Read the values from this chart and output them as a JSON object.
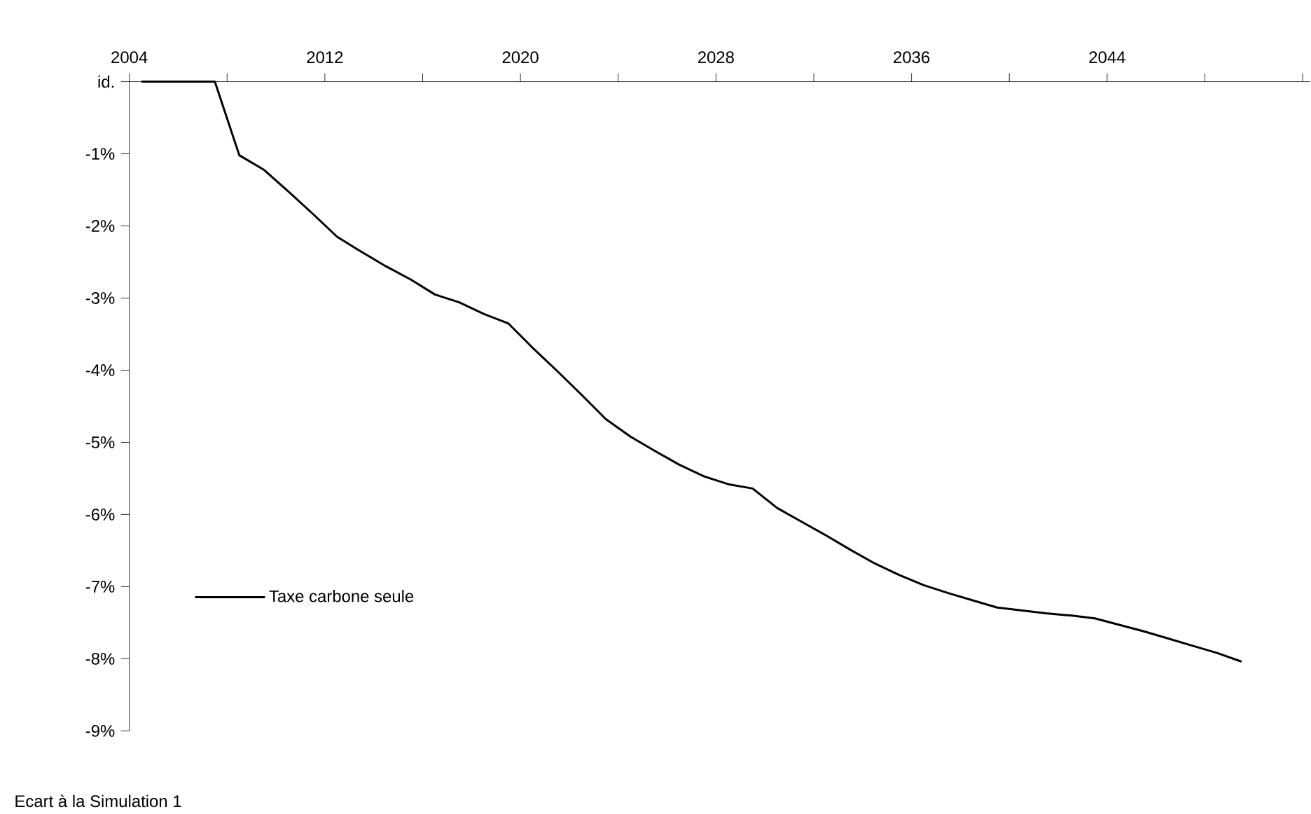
{
  "chart_data": {
    "type": "line",
    "x": [
      2004.5,
      2005.5,
      2006.5,
      2007.5,
      2008.5,
      2009.5,
      2010.5,
      2011.5,
      2012.5,
      2013.5,
      2014.5,
      2015.5,
      2016.5,
      2017.5,
      2018.5,
      2019.5,
      2020.5,
      2021.5,
      2022.5,
      2023.5,
      2024.5,
      2025.5,
      2026.5,
      2027.5,
      2028.5,
      2029.5,
      2030.5,
      2031.5,
      2032.5,
      2033.5,
      2034.5,
      2035.5,
      2036.5,
      2037.5,
      2038.5,
      2039.5,
      2040.5,
      2041.5,
      2042.5,
      2043.5,
      2044.5,
      2045.5,
      2046.5,
      2047.5,
      2048.5,
      2049.5
    ],
    "series": [
      {
        "name": "Taxe carbone seule",
        "color": "#000000",
        "values": [
          0,
          0,
          0,
          0,
          -1.02,
          -1.22,
          -1.52,
          -1.83,
          -2.15,
          -2.36,
          -2.56,
          -2.74,
          -2.95,
          -3.06,
          -3.22,
          -3.35,
          -3.69,
          -4.01,
          -4.34,
          -4.68,
          -4.92,
          -5.12,
          -5.31,
          -5.47,
          -5.58,
          -5.64,
          -5.91,
          -6.1,
          -6.29,
          -6.49,
          -6.68,
          -6.84,
          -6.98,
          -7.09,
          -7.19,
          -7.29,
          -7.33,
          -7.37,
          -7.4,
          -7.44,
          -7.53,
          -7.62,
          -7.72,
          -7.82,
          -7.92,
          -8.04
        ]
      }
    ],
    "xlim": [
      2004,
      2052.3
    ],
    "xticks": [
      2004,
      {
        "value": 2008,
        "label": null
      },
      2012,
      {
        "value": 2016,
        "label": null
      },
      2020,
      {
        "value": 2024,
        "label": null
      },
      2028,
      {
        "value": 2032,
        "label": null
      },
      2036,
      {
        "value": 2040,
        "label": null
      },
      2044,
      {
        "value": 2048,
        "label": null
      },
      {
        "value": 2052,
        "label": null
      }
    ],
    "ylim": [
      -9,
      0
    ],
    "yticks": [
      {
        "value": 0,
        "label": "id."
      },
      {
        "value": -1,
        "label": "-1%"
      },
      {
        "value": -2,
        "label": "-2%"
      },
      {
        "value": -3,
        "label": "-3%"
      },
      {
        "value": -4,
        "label": "-4%"
      },
      {
        "value": -5,
        "label": "-5%"
      },
      {
        "value": -6,
        "label": "-6%"
      },
      {
        "value": -7,
        "label": "-7%"
      },
      {
        "value": -8,
        "label": "-8%"
      },
      {
        "value": -9,
        "label": "-9%"
      }
    ],
    "legend": "bottom left",
    "line_style": "solid",
    "marker": "none",
    "annotations": [
      "Ecart à la Simulation 1"
    ]
  }
}
